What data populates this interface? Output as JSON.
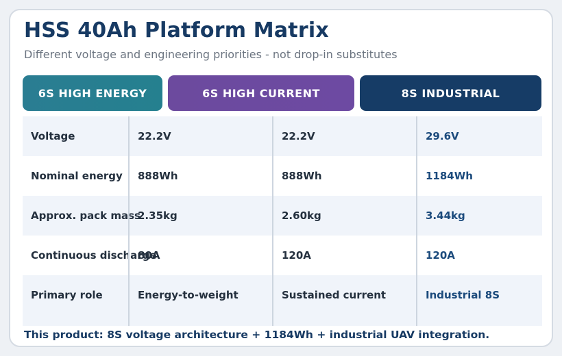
{
  "title": "HSS 40Ah Platform Matrix",
  "subtitle": "Different voltage and engineering priorities - not drop-in substitutes",
  "columns": [
    {
      "label": "6S HIGH ENERGY",
      "color": "#2a7d92"
    },
    {
      "label": "6S HIGH CURRENT",
      "color": "#6c4a9e"
    },
    {
      "label": "8S INDUSTRIAL",
      "color": "#163c66"
    }
  ],
  "rows": [
    {
      "label": "Voltage",
      "values": [
        "22.2V",
        "22.2V",
        "29.6V"
      ]
    },
    {
      "label": "Nominal energy",
      "values": [
        "888Wh",
        "888Wh",
        "1184Wh"
      ]
    },
    {
      "label": "Approx. pack mass",
      "values": [
        "2.35kg",
        "2.60kg",
        "3.44kg"
      ]
    },
    {
      "label": "Continuous discharge",
      "values": [
        "80A",
        "120A",
        "120A"
      ]
    },
    {
      "label": "Primary role",
      "values": [
        "Energy-to-weight",
        "Sustained current",
        "Industrial 8S"
      ]
    }
  ],
  "footer": "This product: 8S voltage architecture + 1184Wh + industrial UAV integration."
}
